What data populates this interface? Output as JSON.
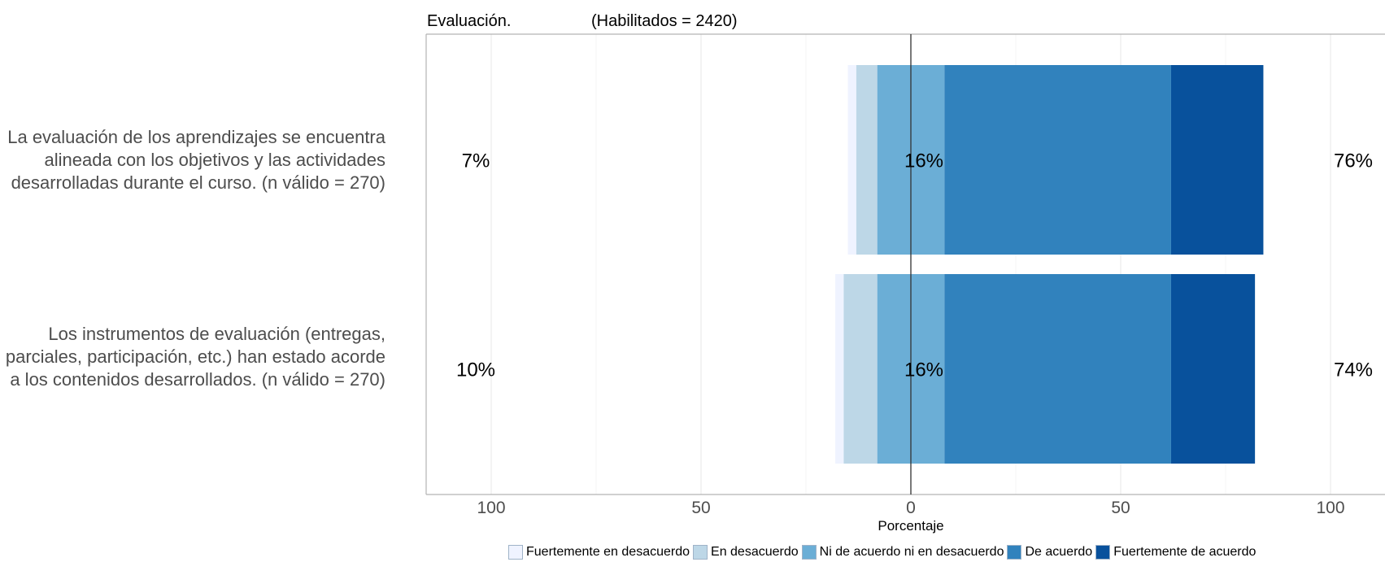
{
  "chart_data": {
    "type": "bar",
    "orientation": "horizontal",
    "stacking": "diverging",
    "title": "Evaluación.",
    "subtitle": "(Habilitados = 2420)",
    "xlabel": "Porcentaje",
    "xlim": [
      -100,
      100
    ],
    "xticks": [
      -100,
      -50,
      0,
      50,
      100
    ],
    "xtick_labels": [
      "100",
      "50",
      "0",
      "50",
      "100"
    ],
    "grid": true,
    "legend_position": "bottom",
    "categories": [
      "La evaluación de los aprendizajes se encuentra alineada con los objetivos y las actividades desarrolladas durante el curso. (n válido = 270)",
      "Los instrumentos de evaluación (entregas, parciales, participación, etc.) han estado acorde a los contenidos desarrollados. (n válido = 270)"
    ],
    "series": [
      {
        "name": "Fuertemente en desacuerdo",
        "color": "#eff3ff",
        "values": [
          2,
          2
        ]
      },
      {
        "name": "En desacuerdo",
        "color": "#bdd7e7",
        "values": [
          5,
          8
        ]
      },
      {
        "name": "Ni de acuerdo ni en desacuerdo",
        "color": "#6baed6",
        "values": [
          16,
          16
        ]
      },
      {
        "name": "De acuerdo",
        "color": "#3182bd",
        "values": [
          54,
          54
        ]
      },
      {
        "name": "Fuertemente de acuerdo",
        "color": "#08519c",
        "values": [
          22,
          20
        ]
      }
    ],
    "left_labels": [
      "7%",
      "10%"
    ],
    "center_labels": [
      "16%",
      "16%"
    ],
    "right_labels": [
      "76%",
      "74%"
    ]
  }
}
